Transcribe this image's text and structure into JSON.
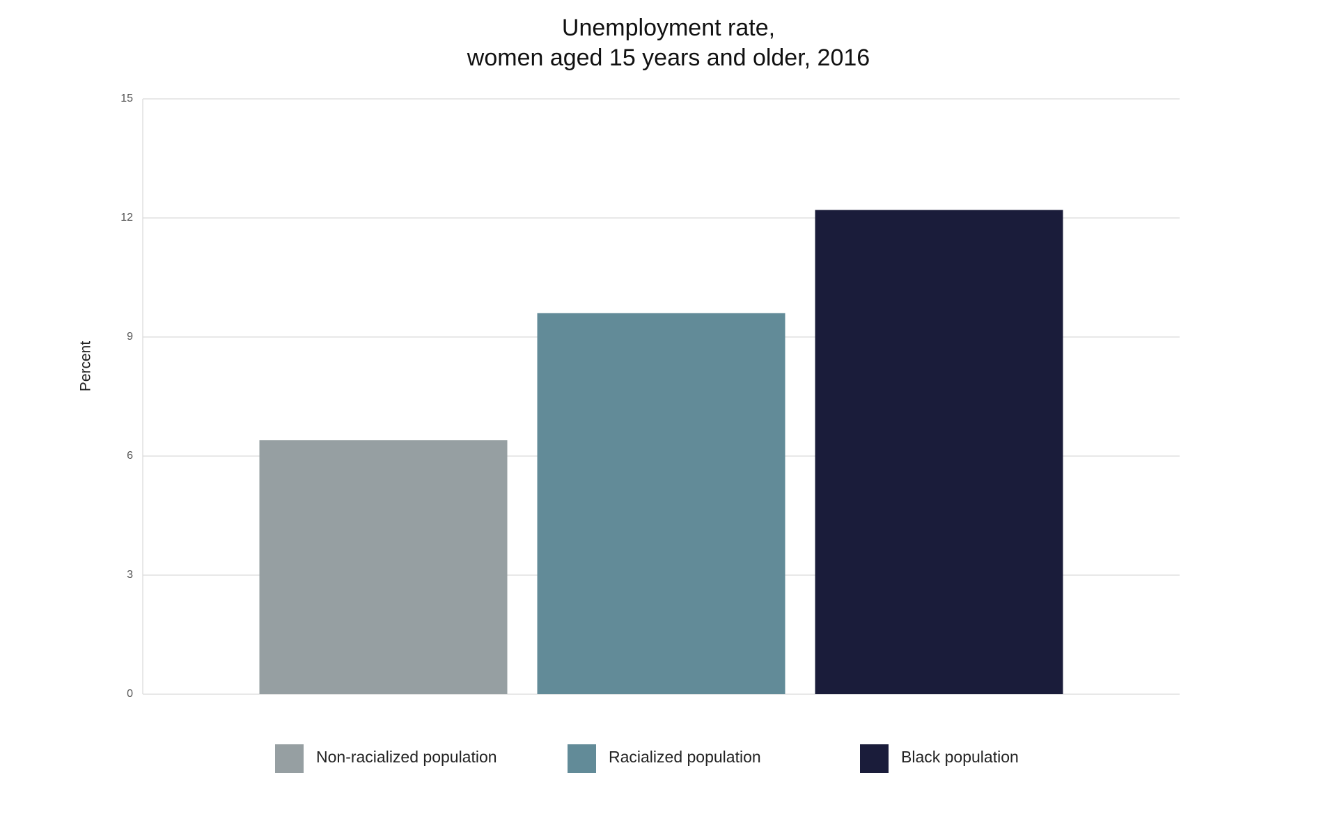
{
  "chart_data": {
    "type": "bar",
    "title": "Unemployment rate,",
    "subtitle": "women aged 15 years and older, 2016",
    "y_label": "Percent",
    "categories": [
      null
    ],
    "series": [
      {
        "name": "Non-racialized population",
        "color": "#969fa2",
        "values": [
          6.4
        ]
      },
      {
        "name": "Racialized population",
        "color": "#628b98",
        "values": [
          9.6
        ]
      },
      {
        "name": "Black population",
        "color": "#1a1c3a",
        "values": [
          12.2
        ]
      }
    ],
    "ylim": [
      0,
      15
    ],
    "yticks": [
      0,
      3,
      6,
      9,
      12,
      15
    ],
    "grid": true,
    "legend": "bottom"
  }
}
